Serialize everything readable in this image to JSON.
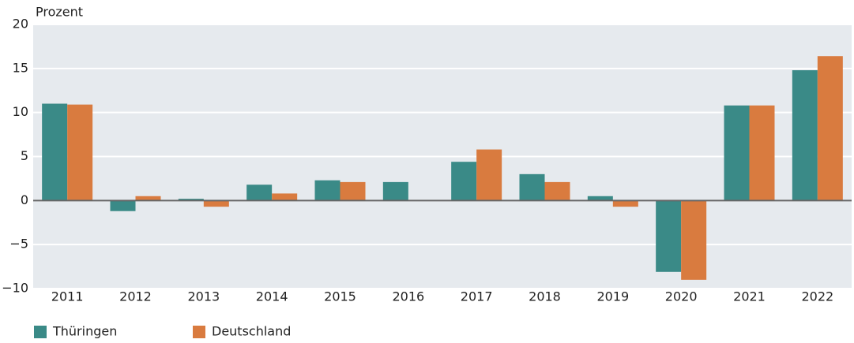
{
  "chart_data": {
    "type": "bar",
    "y_label": "Prozent",
    "categories": [
      "2011",
      "2012",
      "2013",
      "2014",
      "2015",
      "2016",
      "2017",
      "2018",
      "2019",
      "2020",
      "2021",
      "2022"
    ],
    "series": [
      {
        "name": "Thüringen",
        "color": "#3a8a87",
        "values": [
          11.0,
          -1.2,
          0.2,
          1.8,
          2.3,
          2.1,
          4.4,
          3.0,
          0.5,
          -8.1,
          10.8,
          14.8
        ]
      },
      {
        "name": "Deutschland",
        "color": "#d97b3f",
        "values": [
          10.9,
          0.5,
          -0.7,
          0.8,
          2.1,
          0,
          5.8,
          2.1,
          -0.7,
          -9.0,
          10.8,
          16.4
        ]
      }
    ],
    "ylim": [
      -10,
      20
    ],
    "yticks": [
      {
        "value": -10,
        "label": "−10"
      },
      {
        "value": -5,
        "label": "−5"
      },
      0,
      5,
      10,
      15,
      20
    ],
    "grid": true
  }
}
